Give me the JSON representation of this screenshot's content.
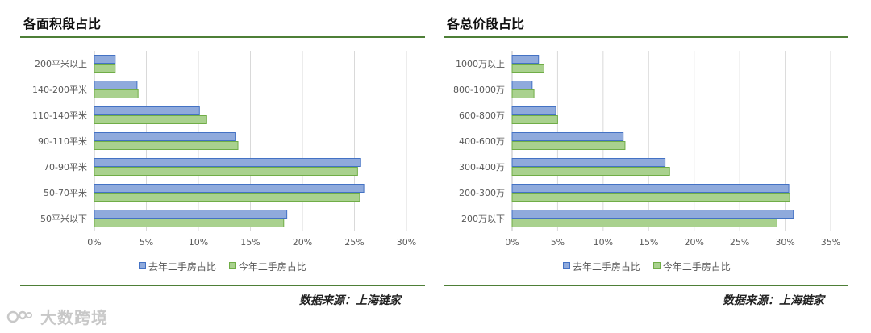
{
  "colors": {
    "series_last_year": "#8faadc",
    "series_last_year_border": "#4472c4",
    "series_this_year": "#a9d18e",
    "series_this_year_border": "#70ad47",
    "rule": "#4e7f37"
  },
  "watermark": {
    "text": "大数跨境",
    "icon": "logo-icon"
  },
  "chart_data": [
    {
      "type": "bar",
      "orientation": "horizontal",
      "title": "各面积段占比",
      "categories": [
        "200平米以上",
        "140-200平米",
        "110-140平米",
        "90-110平米",
        "70-90平米",
        "50-70平米",
        "50平米以下"
      ],
      "series": [
        {
          "name": "去年二手房占比",
          "values": [
            2.0,
            4.1,
            10.1,
            13.6,
            25.6,
            25.9,
            18.5
          ]
        },
        {
          "name": "今年二手房占比",
          "values": [
            2.0,
            4.2,
            10.8,
            13.8,
            25.3,
            25.5,
            18.2
          ]
        }
      ],
      "xlim": [
        0,
        30
      ],
      "xticks": [
        "0%",
        "5%",
        "10%",
        "15%",
        "20%",
        "25%",
        "30%"
      ],
      "grid": true,
      "legend": "bottom",
      "source": "数据来源：上海链家"
    },
    {
      "type": "bar",
      "orientation": "horizontal",
      "title": "各总价段占比",
      "categories": [
        "1000万以上",
        "800-1000万",
        "600-800万",
        "400-600万",
        "300-400万",
        "200-300万",
        "200万以下"
      ],
      "series": [
        {
          "name": "去年二手房占比",
          "values": [
            2.9,
            2.2,
            4.8,
            12.2,
            16.8,
            30.4,
            30.9
          ]
        },
        {
          "name": "今年二手房占比",
          "values": [
            3.5,
            2.4,
            5.0,
            12.4,
            17.3,
            30.5,
            29.1
          ]
        }
      ],
      "xlim": [
        0,
        35
      ],
      "xticks": [
        "0%",
        "5%",
        "10%",
        "15%",
        "20%",
        "25%",
        "30%",
        "35%"
      ],
      "grid": true,
      "legend": "bottom",
      "source": "数据来源：上海链家"
    }
  ]
}
